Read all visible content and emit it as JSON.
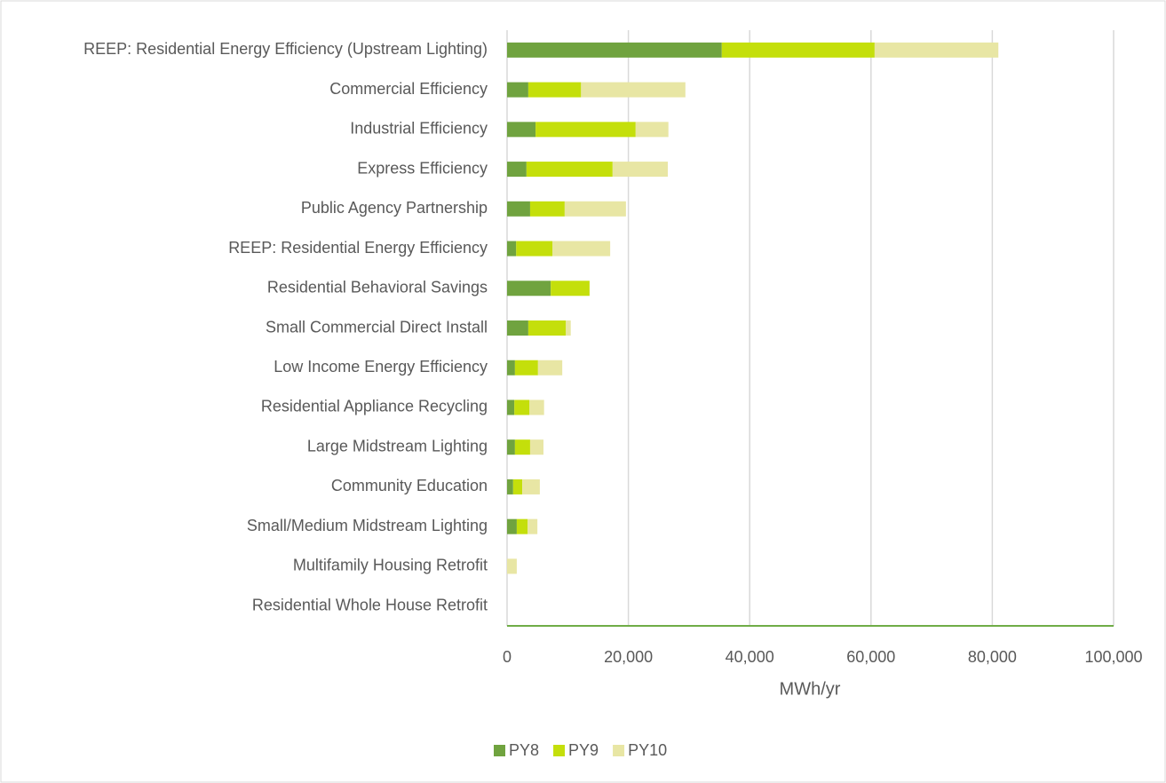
{
  "chart_data": {
    "type": "bar",
    "orientation": "horizontal",
    "stacked": true,
    "xlabel": "MWh/yr",
    "categories": [
      "REEP: Residential Energy Efficiency (Upstream Lighting)",
      "Commercial Efficiency",
      "Industrial Efficiency",
      "Express Efficiency",
      "Public Agency Partnership",
      "REEP: Residential Energy Efficiency",
      "Residential Behavioral Savings",
      "Small Commercial Direct Install",
      "Low Income Energy Efficiency",
      "Residential Appliance Recycling",
      "Large Midstream Lighting",
      "Community Education",
      "Small/Medium Midstream Lighting",
      "Multifamily Housing Retrofit",
      "Residential Whole House Retrofit"
    ],
    "series": [
      {
        "name": "PY8",
        "color": "#70a33f",
        "values": [
          35400,
          3500,
          4700,
          3200,
          3800,
          1500,
          7200,
          3500,
          1300,
          1200,
          1300,
          1000,
          1600,
          0,
          0
        ]
      },
      {
        "name": "PY9",
        "color": "#c4df0b",
        "values": [
          25200,
          8700,
          16500,
          14200,
          5700,
          6000,
          6400,
          6200,
          3800,
          2500,
          2500,
          1500,
          1800,
          0,
          0
        ]
      },
      {
        "name": "PY10",
        "color": "#e8e6a4",
        "values": [
          20400,
          17200,
          5400,
          9100,
          10100,
          9500,
          0,
          800,
          4000,
          2400,
          2200,
          2900,
          1600,
          1600,
          0
        ]
      }
    ],
    "xlim": [
      0,
      100000
    ],
    "xticks": [
      {
        "value": 0,
        "label": "0"
      },
      {
        "value": 20000,
        "label": "20,000"
      },
      {
        "value": 40000,
        "label": "40,000"
      },
      {
        "value": 60000,
        "label": "60,000"
      },
      {
        "value": 80000,
        "label": "80,000"
      },
      {
        "value": 100000,
        "label": "100,000"
      }
    ],
    "grid": true,
    "legend": "bottom"
  }
}
